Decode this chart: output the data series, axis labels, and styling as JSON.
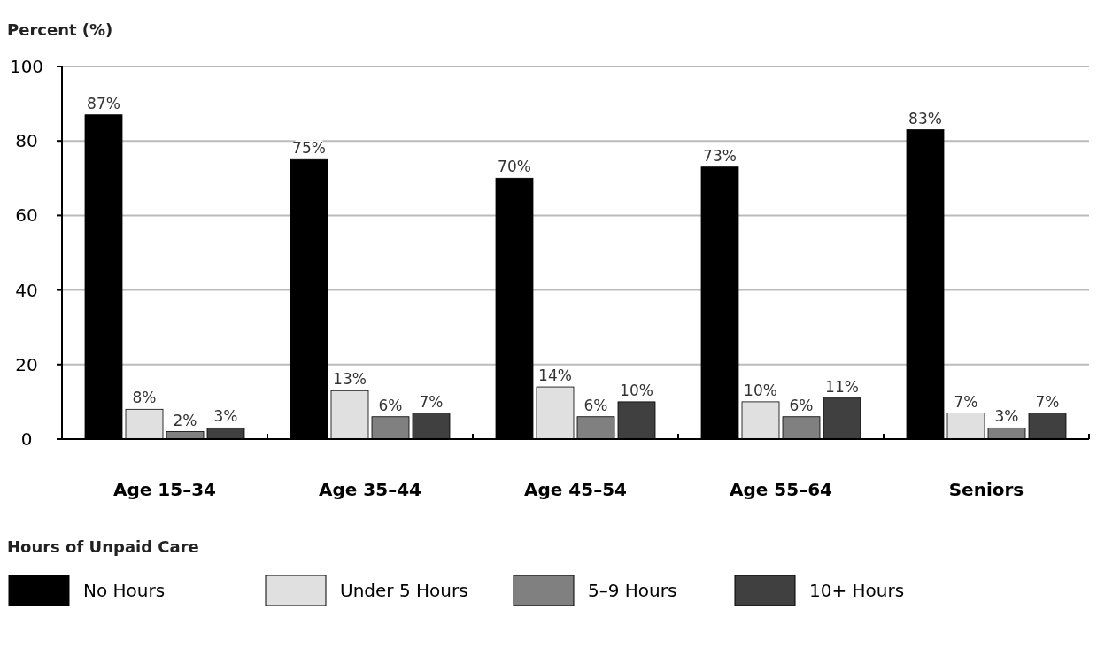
{
  "chart_data": {
    "type": "bar",
    "ylabel": "Percent (%)",
    "legend_title": "Hours of Unpaid Care",
    "categories": [
      "Age 15–34",
      "Age 35–44",
      "Age 45–54",
      "Age 55–64",
      "Seniors"
    ],
    "series": [
      {
        "name": "No Hours",
        "color": "#000000",
        "values": [
          87,
          75,
          70,
          73,
          83
        ],
        "value_labels": [
          "87%",
          "75%",
          "70%",
          "73%",
          "83%"
        ]
      },
      {
        "name": "Under 5 Hours",
        "color": "#e0e0e0",
        "values": [
          8,
          13,
          14,
          10,
          7
        ],
        "value_labels": [
          "8%",
          "13%",
          "14%",
          "10%",
          "7%"
        ]
      },
      {
        "name": "5–9 Hours",
        "color": "#808080",
        "values": [
          2,
          6,
          6,
          6,
          3
        ],
        "value_labels": [
          "2%",
          "6%",
          "6%",
          "6%",
          "3%"
        ]
      },
      {
        "name": "10+ Hours",
        "color": "#404040",
        "values": [
          3,
          7,
          10,
          11,
          7
        ],
        "value_labels": [
          "3%",
          "7%",
          "10%",
          "11%",
          "7%"
        ]
      }
    ],
    "ylim": [
      0,
      100
    ],
    "yticks": [
      0,
      20,
      40,
      60,
      80,
      100
    ],
    "grid": "y",
    "legend": "bottom"
  }
}
